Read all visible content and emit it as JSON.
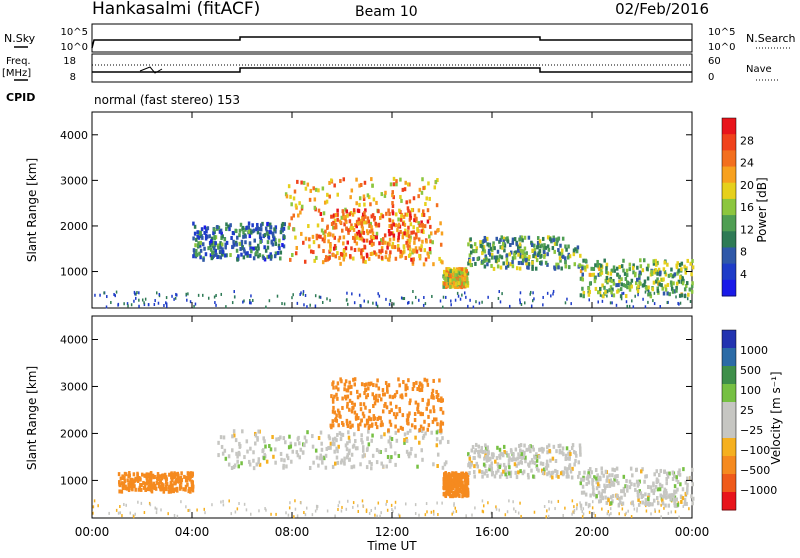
{
  "header": {
    "station": "Hankasalmi (fitACF)",
    "beam": "Beam 10",
    "date": "02/Feb/2016"
  },
  "status_panels": {
    "nsky_label": "N.Sky",
    "nsky_ticks": [
      "10^5",
      "10^0"
    ],
    "nsearch_label": "N.Search",
    "nsearch_ticks": [
      "10^5",
      "10^0"
    ],
    "freq_label": "Freq.",
    "freq_unit": "[MHz]",
    "freq_ticks": [
      "18",
      "8"
    ],
    "nave_label": "Nave",
    "nave_ticks": [
      "60",
      "0"
    ],
    "cpid_label": "CPID",
    "cpid_text": "normal (fast stereo) 153"
  },
  "chart_data": [
    {
      "type": "heatmap",
      "name": "power",
      "ylabel": "Slant Range [km]",
      "xlabel": "",
      "xlim_hours": [
        0,
        24
      ],
      "ylim": [
        200,
        4500
      ],
      "yticks": [
        "1000",
        "2000",
        "3000",
        "4000"
      ],
      "colorbar": {
        "label": "Power [dB]",
        "ticks": [
          "28",
          "24",
          "20",
          "16",
          "12",
          "8",
          "4"
        ],
        "colors": [
          "#e8141b",
          "#f0421b",
          "#f36f1e",
          "#f7a11f",
          "#e6d01c",
          "#8cc63e",
          "#4f9e53",
          "#2e7a55",
          "#2f58a8",
          "#1e3cc8",
          "#1a1ae8"
        ]
      },
      "regions": [
        {
          "t0": 4.0,
          "t1": 7.7,
          "r0": 1300,
          "r1": 2100,
          "value": 8
        },
        {
          "t0": 7.7,
          "t1": 14.0,
          "r0": 1200,
          "r1": 3100,
          "value": 22
        },
        {
          "t0": 9.0,
          "t1": 13.5,
          "r0": 1300,
          "r1": 2400,
          "value": 26
        },
        {
          "t0": 14.0,
          "t1": 15.0,
          "r0": 700,
          "r1": 1100,
          "value": 20
        },
        {
          "t0": 15.0,
          "t1": 19.5,
          "r0": 1100,
          "r1": 1800,
          "value": 12
        },
        {
          "t0": 19.5,
          "t1": 24.0,
          "r0": 500,
          "r1": 1300,
          "value": 14
        }
      ]
    },
    {
      "type": "heatmap",
      "name": "velocity",
      "ylabel": "Slant Range [km]",
      "xlabel": "Time UT",
      "xlim_hours": [
        0,
        24
      ],
      "ylim": [
        200,
        4500
      ],
      "yticks": [
        "1000",
        "2000",
        "3000",
        "4000"
      ],
      "xticks": [
        "00:00",
        "04:00",
        "08:00",
        "12:00",
        "16:00",
        "20:00",
        "00:00"
      ],
      "colorbar": {
        "label": "Velocity [m s⁻¹]",
        "ticks": [
          "1000",
          "500",
          "100",
          "25",
          "−25",
          "−100",
          "−500",
          "−1000"
        ],
        "colors": [
          "#2233b0",
          "#2b6ba6",
          "#3e8f4a",
          "#76c043",
          "#c6c6c2",
          "#c6c6c2",
          "#f5b01f",
          "#f58a1f",
          "#ef5a1a",
          "#e8141b"
        ]
      },
      "regions": [
        {
          "t0": 5.0,
          "t1": 14.2,
          "r0": 1300,
          "r1": 2100,
          "value": 0
        },
        {
          "t0": 9.5,
          "t1": 14.0,
          "r0": 2100,
          "r1": 3200,
          "value": -300
        },
        {
          "t0": 14.0,
          "t1": 15.0,
          "r0": 700,
          "r1": 1200,
          "value": -150
        },
        {
          "t0": 15.0,
          "t1": 19.5,
          "r0": 1100,
          "r1": 1800,
          "value": 0
        },
        {
          "t0": 19.5,
          "t1": 24.0,
          "r0": 500,
          "r1": 1300,
          "value": 0
        },
        {
          "t0": 1.0,
          "t1": 4.0,
          "r0": 800,
          "r1": 1200,
          "value": -200
        }
      ]
    }
  ]
}
